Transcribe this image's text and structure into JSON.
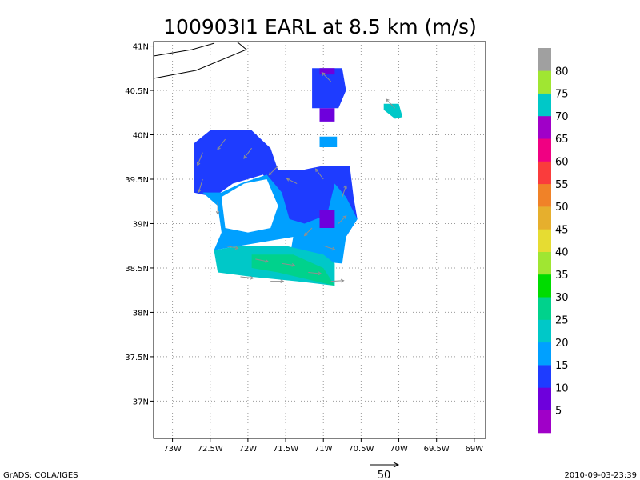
{
  "chart_data": {
    "type": "heatmap",
    "title": "100903I1 EARL at 8.5 km (m/s)",
    "x_ticks": [
      "73W",
      "72.5W",
      "72W",
      "71.5W",
      "71W",
      "70.5W",
      "70W",
      "69.5W",
      "69W"
    ],
    "x_tick_values": [
      -73,
      -72.5,
      -72,
      -71.5,
      -71,
      -70.5,
      -70,
      -69.5,
      -69
    ],
    "y_ticks": [
      "37N",
      "37.5N",
      "38N",
      "38.5N",
      "39N",
      "39.5N",
      "40N",
      "40.5N",
      "41N"
    ],
    "y_tick_values": [
      37,
      37.5,
      38,
      38.5,
      39,
      39.5,
      40,
      40.5,
      41
    ],
    "xlim": [
      -73.25,
      -68.85
    ],
    "ylim": [
      36.58,
      41.05
    ],
    "grid": true,
    "colorbar": {
      "levels": [
        "5",
        "10",
        "15",
        "20",
        "25",
        "30",
        "35",
        "40",
        "45",
        "50",
        "55",
        "60",
        "65",
        "70",
        "75",
        "80"
      ],
      "colors": [
        "#a000c8",
        "#6e00dc",
        "#1e3cff",
        "#00a0ff",
        "#00c8c8",
        "#00d28c",
        "#00dc00",
        "#a0e632",
        "#e6dc32",
        "#e6af2d",
        "#f08228",
        "#fa3c3c",
        "#f00082",
        "#a000c8",
        "#00c8c8",
        "#a0e632",
        "#a0a0a0"
      ]
    },
    "wind_field": [
      {
        "lon": -72.6,
        "lat": 39.8,
        "speed_class": 15,
        "u": -0.4,
        "v": -1.0
      },
      {
        "lon": -72.3,
        "lat": 39.95,
        "speed_class": 15,
        "u": -0.6,
        "v": -0.8
      },
      {
        "lon": -71.95,
        "lat": 39.85,
        "speed_class": 15,
        "u": -0.6,
        "v": -0.8
      },
      {
        "lon": -71.6,
        "lat": 39.65,
        "speed_class": 15,
        "u": -0.7,
        "v": -0.7
      },
      {
        "lon": -72.6,
        "lat": 39.5,
        "speed_class": 15,
        "u": -0.3,
        "v": -1.0
      },
      {
        "lon": -72.4,
        "lat": 39.25,
        "speed_class": 20,
        "u": 0.0,
        "v": -1.0
      },
      {
        "lon": -71.35,
        "lat": 39.45,
        "speed_class": 15,
        "u": -0.8,
        "v": 0.4
      },
      {
        "lon": -71.0,
        "lat": 39.5,
        "speed_class": 15,
        "u": -0.6,
        "v": 0.8
      },
      {
        "lon": -70.75,
        "lat": 39.3,
        "speed_class": 20,
        "u": 0.3,
        "v": 0.9
      },
      {
        "lon": -70.8,
        "lat": 39.0,
        "speed_class": 20,
        "u": 0.6,
        "v": 0.6
      },
      {
        "lon": -71.15,
        "lat": 38.95,
        "speed_class": 15,
        "u": -0.6,
        "v": -0.6
      },
      {
        "lon": -71.0,
        "lat": 38.75,
        "speed_class": 20,
        "u": 0.9,
        "v": -0.3
      },
      {
        "lon": -72.3,
        "lat": 38.75,
        "speed_class": 25,
        "u": 1.0,
        "v": -0.2
      },
      {
        "lon": -71.9,
        "lat": 38.6,
        "speed_class": 30,
        "u": 1.0,
        "v": -0.2
      },
      {
        "lon": -71.55,
        "lat": 38.55,
        "speed_class": 30,
        "u": 1.0,
        "v": -0.15
      },
      {
        "lon": -71.2,
        "lat": 38.45,
        "speed_class": 30,
        "u": 1.0,
        "v": -0.1
      },
      {
        "lon": -70.9,
        "lat": 38.35,
        "speed_class": 30,
        "u": 1.0,
        "v": 0.05
      },
      {
        "lon": -72.1,
        "lat": 38.4,
        "speed_class": 25,
        "u": 1.0,
        "v": -0.1
      },
      {
        "lon": -71.7,
        "lat": 38.35,
        "speed_class": 25,
        "u": 1.0,
        "v": 0.0
      },
      {
        "lon": -70.9,
        "lat": 40.6,
        "speed_class": 10,
        "u": -0.7,
        "v": 0.7
      },
      {
        "lon": -70.05,
        "lat": 40.3,
        "speed_class": 25,
        "u": -0.7,
        "v": 0.7
      }
    ],
    "vector_scale_label": "50"
  },
  "footer": {
    "left": "GrADS: COLA/IGES",
    "right": "2010-09-03-23:39"
  }
}
